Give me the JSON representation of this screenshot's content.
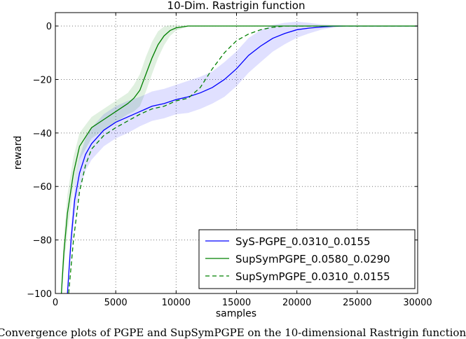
{
  "chart_data": {
    "type": "line",
    "title": "10-Dim. Rastrigin function",
    "xlabel": "samples",
    "ylabel": "reward",
    "xlim": [
      0,
      30000
    ],
    "ylim": [
      -100,
      5
    ],
    "xticks": [
      "0",
      "5000",
      "10000",
      "15000",
      "20000",
      "25000",
      "30000"
    ],
    "yticks": [
      "0",
      "−20",
      "−40",
      "−60",
      "−80",
      "−100"
    ],
    "grid": true,
    "legend_position": "bottom-right",
    "series": [
      {
        "name": "SyS-PGPE_0.0310_0.0155",
        "color": "#0000ff",
        "style": "solid",
        "band_color": "#0000ff",
        "x": [
          1000,
          1300,
          1600,
          2000,
          2500,
          3000,
          4000,
          5000,
          6000,
          7000,
          7500,
          8000,
          9000,
          10000,
          11000,
          12000,
          13000,
          14000,
          15000,
          16000,
          17000,
          18000,
          19000,
          20000,
          21000,
          22000,
          23000,
          24000,
          30000
        ],
        "y": [
          -100,
          -80,
          -65,
          -55,
          -48,
          -44,
          -39,
          -36,
          -34,
          -32,
          -31,
          -30,
          -29,
          -27.5,
          -26.5,
          -25,
          -23,
          -20,
          -16,
          -11,
          -7.5,
          -4.6,
          -2.8,
          -1.4,
          -0.8,
          -0.4,
          -0.1,
          0,
          0
        ],
        "band": [
          3,
          5,
          6,
          6,
          6,
          6,
          6,
          6,
          6,
          5.5,
          5.5,
          5.5,
          5.5,
          5.5,
          6,
          6,
          6,
          6.5,
          6.5,
          6.5,
          6,
          5,
          4,
          3,
          2,
          1,
          0.5,
          0.2,
          0
        ]
      },
      {
        "name": "SupSymPGPE_0.0580_0.0290",
        "color": "#008000",
        "style": "solid",
        "band_color": "#008000",
        "x": [
          500,
          700,
          1000,
          1500,
          2000,
          3000,
          4000,
          5000,
          6000,
          6500,
          7000,
          7500,
          8000,
          8500,
          9000,
          9500,
          10000,
          11000,
          30000
        ],
        "y": [
          -100,
          -85,
          -70,
          -55,
          -45,
          -38,
          -35,
          -32,
          -29,
          -27,
          -24,
          -18,
          -12,
          -7,
          -3.7,
          -1.7,
          -0.7,
          0,
          0
        ],
        "band": [
          4,
          6,
          7,
          6,
          5,
          4,
          4,
          4,
          4,
          5,
          6,
          6.5,
          6,
          5,
          3.5,
          2,
          1,
          0.2,
          0
        ]
      },
      {
        "name": "SupSymPGPE_0.0310_0.0155",
        "color": "#008000",
        "style": "dashed",
        "x": [
          1100,
          1500,
          2000,
          2500,
          3000,
          4000,
          5000,
          6000,
          7000,
          8000,
          9000,
          10000,
          11000,
          12000,
          13000,
          14000,
          15000,
          16000,
          17000,
          18000,
          19000,
          30000
        ],
        "y": [
          -100,
          -80,
          -62,
          -52,
          -46,
          -41,
          -38,
          -35.5,
          -33,
          -31,
          -30,
          -28,
          -27,
          -23,
          -16,
          -10,
          -5.5,
          -3,
          -1.4,
          -0.5,
          0,
          0
        ]
      }
    ]
  },
  "caption": "Convergence plots of PGPE and SupSymPGPE on the 10-dimensional Rastrigin function"
}
